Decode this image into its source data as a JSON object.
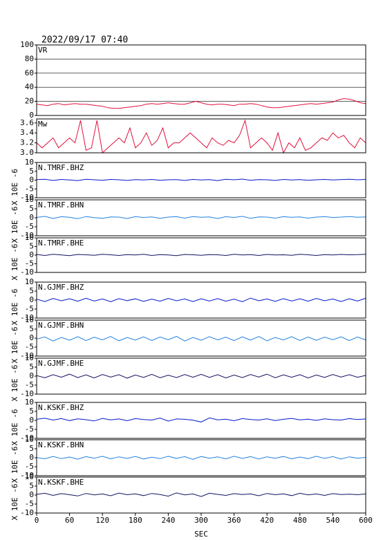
{
  "chart_data": [
    {
      "type": "line",
      "title": "2022/09/17 07:40",
      "name": "VR",
      "color": "#e0103c",
      "xlim": [
        0,
        600
      ],
      "ylim": [
        0,
        100
      ],
      "yticks": [
        0,
        20,
        40,
        60,
        80,
        100
      ],
      "grid": true,
      "x": [
        0,
        10,
        20,
        30,
        40,
        50,
        60,
        70,
        80,
        90,
        100,
        110,
        120,
        130,
        140,
        150,
        160,
        170,
        180,
        190,
        200,
        210,
        220,
        230,
        240,
        250,
        260,
        270,
        280,
        290,
        300,
        310,
        320,
        330,
        340,
        350,
        360,
        370,
        380,
        390,
        400,
        410,
        420,
        430,
        440,
        450,
        460,
        470,
        480,
        490,
        500,
        510,
        520,
        530,
        540,
        550,
        560,
        570,
        580,
        590,
        600
      ],
      "values": [
        16,
        15,
        14,
        16,
        17,
        15,
        16,
        17,
        16,
        16,
        15,
        14,
        13,
        11,
        10,
        10,
        11,
        12,
        13,
        14,
        16,
        17,
        16,
        17,
        18,
        17,
        16,
        16,
        18,
        20,
        18,
        16,
        15,
        16,
        16,
        15,
        14,
        16,
        16,
        17,
        16,
        14,
        12,
        11,
        11,
        12,
        13,
        14,
        15,
        16,
        17,
        16,
        17,
        18,
        19,
        22,
        24,
        23,
        21,
        18,
        17
      ]
    },
    {
      "type": "line",
      "name": "Mw",
      "color": "#e0103c",
      "xlim": [
        0,
        600
      ],
      "ylim": [
        3.0,
        3.68
      ],
      "yticks": [
        {
          "value": 3.0,
          "label": "3.0"
        },
        3.2,
        3.4,
        3.6
      ],
      "grid": false,
      "x": [
        0,
        10,
        20,
        30,
        40,
        50,
        60,
        70,
        80,
        90,
        100,
        110,
        120,
        130,
        140,
        150,
        160,
        170,
        180,
        190,
        200,
        210,
        220,
        230,
        240,
        250,
        260,
        270,
        280,
        290,
        300,
        310,
        320,
        330,
        340,
        350,
        360,
        370,
        380,
        390,
        400,
        410,
        420,
        430,
        440,
        450,
        460,
        470,
        480,
        490,
        500,
        510,
        520,
        530,
        540,
        550,
        560,
        570,
        580,
        590,
        600
      ],
      "values": [
        3.2,
        3.1,
        3.2,
        3.3,
        3.1,
        3.2,
        3.3,
        3.2,
        3.65,
        3.05,
        3.1,
        3.65,
        3.0,
        3.1,
        3.2,
        3.3,
        3.2,
        3.5,
        3.1,
        3.2,
        3.4,
        3.15,
        3.25,
        3.5,
        3.1,
        3.2,
        3.2,
        3.3,
        3.4,
        3.3,
        3.2,
        3.1,
        3.3,
        3.2,
        3.15,
        3.25,
        3.2,
        3.35,
        3.65,
        3.1,
        3.2,
        3.3,
        3.2,
        3.05,
        3.4,
        3.0,
        3.2,
        3.1,
        3.3,
        3.05,
        3.1,
        3.2,
        3.3,
        3.25,
        3.4,
        3.3,
        3.35,
        3.2,
        3.1,
        3.3,
        3.2
      ]
    },
    {
      "type": "line",
      "name": "N.TMRF.BHZ",
      "ylabel": "X 10E -6",
      "color": "#0018c8",
      "xlim": [
        0,
        600
      ],
      "ylim": [
        -10,
        10
      ],
      "yticks": [
        -10,
        -5,
        0,
        5,
        10
      ],
      "x": [
        0,
        15,
        30,
        45,
        60,
        75,
        90,
        105,
        120,
        135,
        150,
        165,
        180,
        195,
        210,
        225,
        240,
        255,
        270,
        285,
        300,
        315,
        330,
        345,
        360,
        375,
        390,
        405,
        420,
        435,
        450,
        465,
        480,
        495,
        510,
        525,
        540,
        555,
        570,
        585,
        600
      ],
      "values": [
        0.3,
        0.5,
        -0.2,
        0.4,
        0.1,
        -0.3,
        0.5,
        0.2,
        -0.1,
        0.4,
        0.2,
        -0.2,
        0.3,
        0.1,
        0.4,
        -0.1,
        0.2,
        0.3,
        -0.2,
        0.4,
        0.1,
        0.3,
        -0.3,
        0.5,
        0.2,
        0.6,
        -0.1,
        0.3,
        0.2,
        -0.2,
        0.4,
        0.1,
        0.3,
        -0.1,
        0.2,
        0.4,
        0.1,
        0.3,
        0.5,
        0.2,
        0.4
      ]
    },
    {
      "type": "line",
      "name": "N.TMRF.BHN",
      "ylabel": "X 10E -6",
      "color": "#2080e0",
      "xlim": [
        0,
        600
      ],
      "ylim": [
        -10,
        10
      ],
      "yticks": [
        -10,
        -5,
        0,
        5,
        10
      ],
      "x": [
        0,
        15,
        30,
        45,
        60,
        75,
        90,
        105,
        120,
        135,
        150,
        165,
        180,
        195,
        210,
        225,
        240,
        255,
        270,
        285,
        300,
        315,
        330,
        345,
        360,
        375,
        390,
        405,
        420,
        435,
        450,
        465,
        480,
        495,
        510,
        525,
        540,
        555,
        570,
        585,
        600
      ],
      "values": [
        0.2,
        0.8,
        -0.4,
        0.6,
        0.3,
        -0.5,
        0.7,
        0.1,
        -0.3,
        0.5,
        0.4,
        -0.4,
        0.6,
        0.2,
        0.5,
        -0.3,
        0.4,
        0.6,
        -0.2,
        0.7,
        0.3,
        0.5,
        -0.4,
        0.6,
        0.2,
        0.8,
        -0.3,
        0.5,
        0.4,
        -0.2,
        0.6,
        0.3,
        0.5,
        -0.2,
        0.4,
        0.6,
        0.2,
        0.4,
        0.7,
        0.3,
        0.5
      ]
    },
    {
      "type": "line",
      "name": "N.TMRF.BHE",
      "ylabel": "X 10E -6",
      "color": "#101060",
      "xlim": [
        0,
        600
      ],
      "ylim": [
        -10,
        10
      ],
      "yticks": [
        -10,
        -5,
        0,
        5,
        10
      ],
      "x": [
        0,
        15,
        30,
        45,
        60,
        75,
        90,
        105,
        120,
        135,
        150,
        165,
        180,
        195,
        210,
        225,
        240,
        255,
        270,
        285,
        300,
        315,
        330,
        345,
        360,
        375,
        390,
        405,
        420,
        435,
        450,
        465,
        480,
        495,
        510,
        525,
        540,
        555,
        570,
        585,
        600
      ],
      "values": [
        0.4,
        -0.2,
        0.5,
        0.1,
        -0.3,
        0.4,
        0.2,
        -0.1,
        0.5,
        0.2,
        -0.2,
        0.3,
        0.1,
        0.5,
        -0.2,
        0.3,
        0.1,
        -0.3,
        0.4,
        0.2,
        -0.1,
        0.3,
        0.2,
        -0.2,
        0.5,
        0.1,
        0.3,
        -0.2,
        0.4,
        0.1,
        0.2,
        -0.1,
        0.5,
        0.2,
        -0.2,
        0.3,
        0.1,
        0.4,
        0.2,
        0.3,
        0.5
      ]
    },
    {
      "type": "line",
      "name": "N.GJMF.BHZ",
      "ylabel": "X 10E -6",
      "color": "#0018c8",
      "xlim": [
        0,
        600
      ],
      "ylim": [
        -10,
        10
      ],
      "yticks": [
        -10,
        -5,
        0,
        5,
        10
      ],
      "x": [
        0,
        15,
        30,
        45,
        60,
        75,
        90,
        105,
        120,
        135,
        150,
        165,
        180,
        195,
        210,
        225,
        240,
        255,
        270,
        285,
        300,
        315,
        330,
        345,
        360,
        375,
        390,
        405,
        420,
        435,
        450,
        465,
        480,
        495,
        510,
        525,
        540,
        555,
        570,
        585,
        600
      ],
      "values": [
        0.5,
        -0.8,
        0.9,
        -0.4,
        0.7,
        -0.6,
        1.0,
        -0.5,
        0.6,
        -0.9,
        0.8,
        -0.3,
        0.7,
        -0.7,
        0.5,
        -0.6,
        0.9,
        -0.4,
        0.6,
        -0.8,
        0.7,
        -0.5,
        0.8,
        -0.6,
        0.5,
        -0.9,
        1.1,
        -0.4,
        0.6,
        -0.7,
        0.8,
        -0.5,
        0.7,
        -0.6,
        0.9,
        -0.4,
        0.6,
        -0.8,
        0.7,
        -0.5,
        1.0
      ]
    },
    {
      "type": "line",
      "name": "N.GJMF.BHN",
      "ylabel": "X 10E -6",
      "color": "#2080e0",
      "xlim": [
        0,
        600
      ],
      "ylim": [
        -10,
        10
      ],
      "yticks": [
        -10,
        -5,
        0,
        5,
        10
      ],
      "x": [
        0,
        15,
        30,
        45,
        60,
        75,
        90,
        105,
        120,
        135,
        150,
        165,
        180,
        195,
        210,
        225,
        240,
        255,
        270,
        285,
        300,
        315,
        330,
        345,
        360,
        375,
        390,
        405,
        420,
        435,
        450,
        465,
        480,
        495,
        510,
        525,
        540,
        555,
        570,
        585,
        600
      ],
      "values": [
        -0.5,
        0.6,
        -1.6,
        0.4,
        -1.2,
        0.8,
        -1.4,
        0.5,
        -1.0,
        0.9,
        -1.5,
        0.3,
        -1.1,
        0.7,
        -1.3,
        0.6,
        -0.9,
        1.0,
        -1.6,
        0.4,
        -1.2,
        0.8,
        -1.0,
        0.5,
        -1.4,
        0.7,
        -1.1,
        0.9,
        -1.5,
        0.4,
        -1.0,
        0.8,
        -1.3,
        0.6,
        -1.2,
        0.5,
        -0.9,
        0.7,
        -1.4,
        0.6,
        -1.0
      ]
    },
    {
      "type": "line",
      "name": "N.GJMF.BHE",
      "ylabel": "X 10E -6",
      "color": "#101060",
      "xlim": [
        0,
        600
      ],
      "ylim": [
        -10,
        10
      ],
      "yticks": [
        -10,
        -5,
        0,
        5,
        10
      ],
      "x": [
        0,
        15,
        30,
        45,
        60,
        75,
        90,
        105,
        120,
        135,
        150,
        165,
        180,
        195,
        210,
        225,
        240,
        255,
        270,
        285,
        300,
        315,
        330,
        345,
        360,
        375,
        390,
        405,
        420,
        435,
        450,
        465,
        480,
        495,
        510,
        525,
        540,
        555,
        570,
        585,
        600
      ],
      "values": [
        0.3,
        -0.9,
        0.8,
        -0.6,
        1.1,
        -0.8,
        0.7,
        -1.0,
        0.9,
        -0.5,
        0.8,
        -1.1,
        0.6,
        -0.7,
        1.0,
        -0.9,
        0.5,
        -0.8,
        0.9,
        -0.6,
        1.0,
        -0.7,
        0.8,
        -1.0,
        0.6,
        -0.8,
        0.9,
        -0.5,
        1.1,
        -0.9,
        0.7,
        -0.6,
        0.8,
        -1.0,
        0.6,
        -0.7,
        0.9,
        -0.5,
        0.8,
        -0.6,
        0.4
      ]
    },
    {
      "type": "line",
      "name": "N.KSKF.BHZ",
      "ylabel": "X 10E -6",
      "color": "#0018c8",
      "xlim": [
        0,
        600
      ],
      "ylim": [
        -10,
        10
      ],
      "yticks": [
        -10,
        -5,
        0,
        5,
        10
      ],
      "x": [
        0,
        15,
        30,
        45,
        60,
        75,
        90,
        105,
        120,
        135,
        150,
        165,
        180,
        195,
        210,
        225,
        240,
        255,
        270,
        285,
        300,
        315,
        330,
        345,
        360,
        375,
        390,
        405,
        420,
        435,
        450,
        465,
        480,
        495,
        510,
        525,
        540,
        555,
        570,
        585,
        600
      ],
      "values": [
        0.6,
        1.2,
        0.2,
        1.0,
        -0.1,
        0.9,
        0.4,
        -0.3,
        1.1,
        0.3,
        0.8,
        -0.2,
        1.0,
        0.5,
        0.2,
        1.3,
        -0.4,
        0.8,
        0.6,
        0.1,
        -0.9,
        1.4,
        0.3,
        0.7,
        -0.2,
        1.0,
        0.5,
        0.2,
        0.9,
        -0.1,
        0.6,
        1.1,
        0.3,
        0.7,
        0.0,
        0.9,
        0.4,
        0.2,
        1.0,
        0.5,
        0.8
      ]
    },
    {
      "type": "line",
      "name": "N.KSKF.BHN",
      "ylabel": "X 10E -6",
      "color": "#2080e0",
      "xlim": [
        0,
        600
      ],
      "ylim": [
        -10,
        10
      ],
      "yticks": [
        -10,
        -5,
        0,
        5,
        10
      ],
      "x": [
        0,
        15,
        30,
        45,
        60,
        75,
        90,
        105,
        120,
        135,
        150,
        165,
        180,
        195,
        210,
        225,
        240,
        255,
        270,
        285,
        300,
        315,
        330,
        345,
        360,
        375,
        390,
        405,
        420,
        435,
        450,
        465,
        480,
        495,
        510,
        525,
        540,
        555,
        570,
        585,
        600
      ],
      "values": [
        0.1,
        -0.6,
        0.7,
        -0.5,
        0.4,
        -0.8,
        0.6,
        -0.3,
        0.8,
        -0.6,
        0.5,
        -0.4,
        0.7,
        -0.7,
        0.3,
        -0.5,
        0.8,
        -0.4,
        0.6,
        -0.9,
        0.7,
        -0.3,
        0.5,
        -0.6,
        0.8,
        -0.4,
        0.6,
        -0.7,
        0.5,
        -0.3,
        0.7,
        -0.6,
        0.4,
        -0.5,
        0.8,
        -0.4,
        0.6,
        -0.7,
        0.5,
        -0.3,
        0.2
      ]
    },
    {
      "type": "line",
      "name": "N.KSKF.BHE",
      "ylabel": "X 10E -6",
      "color": "#101060",
      "xlim": [
        0,
        600
      ],
      "ylim": [
        -10,
        10
      ],
      "yticks": [
        -10,
        -5,
        0,
        5,
        10
      ],
      "x": [
        0,
        15,
        30,
        45,
        60,
        75,
        90,
        105,
        120,
        135,
        150,
        165,
        180,
        195,
        210,
        225,
        240,
        255,
        270,
        285,
        300,
        315,
        330,
        345,
        360,
        375,
        390,
        405,
        420,
        435,
        450,
        465,
        480,
        495,
        510,
        525,
        540,
        555,
        570,
        585,
        600
      ],
      "values": [
        0.4,
        1.0,
        -0.2,
        0.8,
        0.2,
        -0.5,
        0.9,
        0.1,
        0.6,
        -0.4,
        1.1,
        0.2,
        0.7,
        -0.3,
        0.9,
        0.3,
        -0.6,
        1.2,
        0.1,
        0.6,
        -0.8,
        1.0,
        0.4,
        -0.2,
        0.8,
        0.3,
        0.6,
        -0.4,
        0.9,
        0.2,
        0.7,
        -0.3,
        1.0,
        0.1,
        0.6,
        -0.2,
        0.8,
        0.3,
        0.5,
        0.2,
        0.6
      ],
      "xticks": [
        0,
        60,
        120,
        180,
        240,
        300,
        360,
        420,
        480,
        540,
        600
      ],
      "x_label": "SEC"
    }
  ]
}
